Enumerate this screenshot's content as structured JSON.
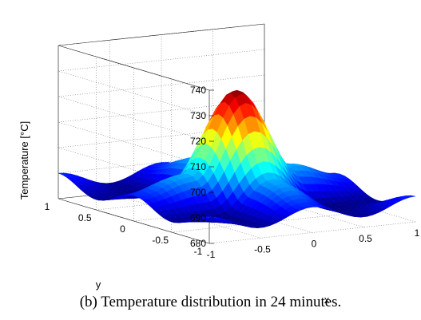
{
  "caption": "(b) Temperature distribution in 24 minutes.",
  "chart_data": {
    "type": "surface",
    "title": "",
    "xlabel": "x",
    "ylabel": "y",
    "zlabel": "Temperature [°C]",
    "xlim": [
      -1,
      1
    ],
    "ylim": [
      -1,
      1
    ],
    "zlim": [
      680,
      740
    ],
    "x_ticks": [
      "-1",
      "-0.5",
      "0",
      "0.5",
      "1"
    ],
    "y_ticks": [
      "-1",
      "-0.5",
      "0",
      "0.5",
      "1"
    ],
    "z_ticks": [
      "680",
      "690",
      "700",
      "710",
      "720",
      "730",
      "740"
    ],
    "grid": true,
    "colormap": "jet",
    "surface": {
      "x": [
        -1,
        -0.5,
        0,
        0.5,
        1
      ],
      "y": [
        -1,
        -0.5,
        0,
        0.5,
        1
      ],
      "z": [
        [
          690,
          684,
          690,
          684,
          690
        ],
        [
          684,
          683,
          696,
          683,
          684
        ],
        [
          690,
          696,
          727,
          696,
          690
        ],
        [
          684,
          683,
          696,
          683,
          684
        ],
        [
          690,
          684,
          690,
          684,
          690
        ]
      ]
    }
  }
}
